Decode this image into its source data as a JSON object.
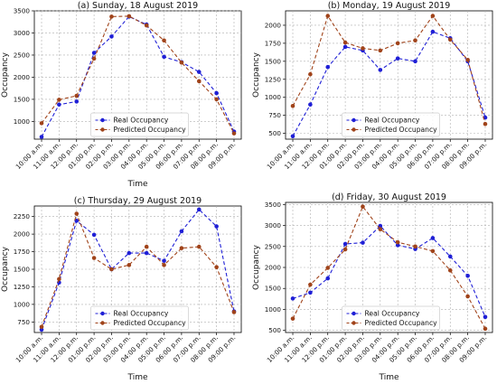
{
  "colors": {
    "real": "#1f1fd6",
    "predicted": "#a0431a",
    "grid": "#b0b0b0"
  },
  "chart_data": [
    {
      "type": "line",
      "title": "(a) Sunday, 18 August 2019",
      "xlabel": "Time",
      "ylabel": "Occupancy",
      "categories": [
        "10:00 a.m.",
        "11:00 a.m.",
        "12:00 p.m.",
        "01:00 p.m.",
        "02:00 p.m.",
        "03:00 p.m.",
        "04:00 p.m.",
        "05:00 p.m.",
        "06:00 p.m.",
        "07:00 p.m.",
        "08:00 p.m.",
        "09:00 p.m."
      ],
      "ylim": [
        600,
        3500
      ],
      "yticks": [
        1000,
        1500,
        2000,
        2500,
        3000,
        3500
      ],
      "grid": true,
      "legend": "lower center",
      "series": [
        {
          "name": "Real Occupancy",
          "values": [
            650,
            1380,
            1450,
            2550,
            2920,
            3370,
            3190,
            2460,
            2340,
            2120,
            1640,
            770
          ]
        },
        {
          "name": "Predicted Occupancy",
          "values": [
            960,
            1490,
            1580,
            2420,
            3370,
            3380,
            3170,
            2830,
            2330,
            1910,
            1500,
            730
          ]
        }
      ]
    },
    {
      "type": "line",
      "title": "(b) Monday, 19 August 2019",
      "xlabel": "",
      "ylabel": "Occupancy",
      "categories": [
        "10:00 a.m.",
        "11:00 a.m.",
        "12:00 p.m.",
        "01:00 p.m.",
        "02:00 p.m.",
        "03:00 p.m.",
        "04:00 p.m.",
        "05:00 p.m.",
        "06:00 p.m.",
        "07:00 p.m.",
        "08:00 p.m.",
        "09:00 p.m."
      ],
      "ylim": [
        420,
        2200
      ],
      "yticks": [
        500,
        750,
        1000,
        1250,
        1500,
        1750,
        2000
      ],
      "grid": true,
      "legend": "lower center",
      "series": [
        {
          "name": "Real Occupancy",
          "values": [
            460,
            900,
            1420,
            1700,
            1650,
            1380,
            1540,
            1500,
            1910,
            1820,
            1500,
            720
          ]
        },
        {
          "name": "Predicted Occupancy",
          "values": [
            880,
            1320,
            2130,
            1760,
            1680,
            1650,
            1750,
            1790,
            2130,
            1800,
            1520,
            630
          ]
        }
      ]
    },
    {
      "type": "line",
      "title": "(c) Thursday, 29 August 2019",
      "xlabel": "Time",
      "ylabel": "Occupancy",
      "categories": [
        "10:00 a.m.",
        "11:00 a.m.",
        "12:00 p.m.",
        "01:00 p.m.",
        "02:00 p.m.",
        "03:00 p.m.",
        "04:00 p.m.",
        "05:00 p.m.",
        "06:00 p.m.",
        "07:00 p.m.",
        "08:00 p.m.",
        "09:00 p.m."
      ],
      "ylim": [
        600,
        2400
      ],
      "yticks": [
        750,
        1000,
        1250,
        1500,
        1750,
        2000,
        2250
      ],
      "grid": true,
      "legend": "lower center",
      "series": [
        {
          "name": "Real Occupancy",
          "values": [
            640,
            1310,
            2190,
            1990,
            1500,
            1730,
            1730,
            1620,
            2040,
            2350,
            2110,
            900
          ]
        },
        {
          "name": "Predicted Occupancy",
          "values": [
            680,
            1360,
            2290,
            1660,
            1500,
            1560,
            1820,
            1560,
            1800,
            1820,
            1530,
            890
          ]
        }
      ]
    },
    {
      "type": "line",
      "title": "(d) Friday, 30 August 2019",
      "xlabel": "Time",
      "ylabel": "Occupancy",
      "categories": [
        "10:00 a.m.",
        "11:00 a.m.",
        "12:00 p.m.",
        "01:00 p.m.",
        "02:00 p.m.",
        "03:00 p.m.",
        "04:00 p.m.",
        "05:00 p.m.",
        "06:00 p.m.",
        "07:00 p.m.",
        "08:00 p.m.",
        "09:00 p.m."
      ],
      "ylim": [
        450,
        3550
      ],
      "yticks": [
        500,
        1000,
        1500,
        2000,
        2500,
        3000,
        3500
      ],
      "grid": true,
      "legend": "lower center",
      "series": [
        {
          "name": "Real Occupancy",
          "values": [
            1260,
            1400,
            1740,
            2560,
            2590,
            2990,
            2530,
            2440,
            2700,
            2260,
            1800,
            820
          ]
        },
        {
          "name": "Predicted Occupancy",
          "values": [
            780,
            1590,
            1990,
            2430,
            3450,
            2910,
            2600,
            2500,
            2390,
            1930,
            1310,
            540
          ]
        }
      ]
    }
  ]
}
